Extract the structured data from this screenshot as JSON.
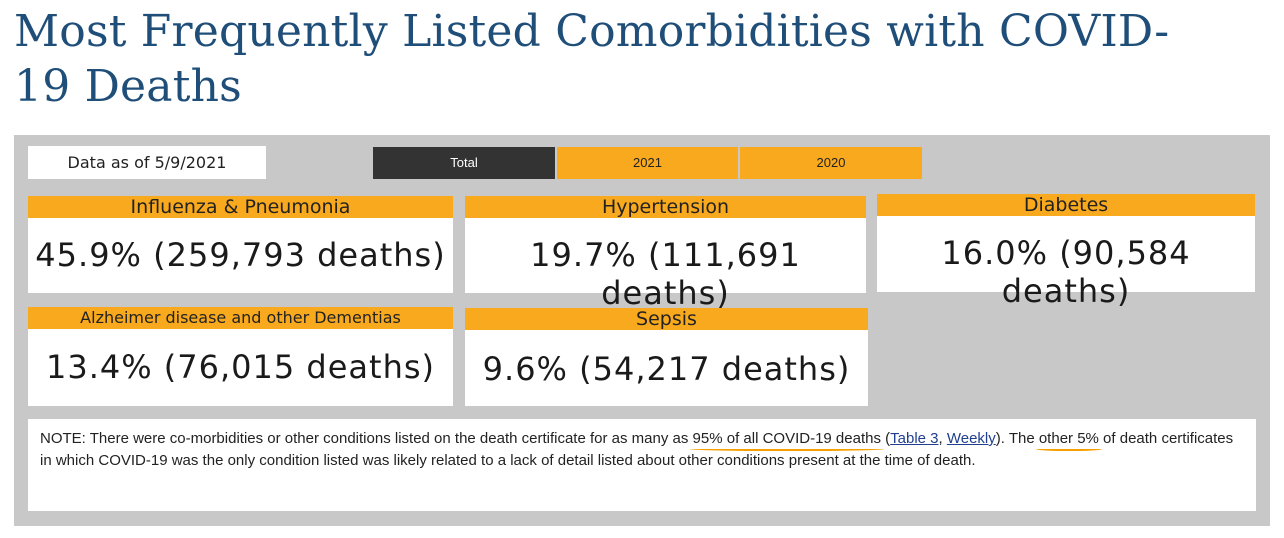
{
  "title": "Most Frequently Listed Comorbidities with COVID-19 Deaths",
  "data_as_of": "Data as of 5/9/2021",
  "tabs": [
    {
      "label": "Total",
      "active": true
    },
    {
      "label": "2021",
      "active": false
    },
    {
      "label": "2020",
      "active": false
    }
  ],
  "cards": [
    {
      "label": "Influenza & Pneumonia",
      "value": "45.9% (259,793 deaths)"
    },
    {
      "label": "Hypertension",
      "value": "19.7% (111,691 deaths)"
    },
    {
      "label": "Diabetes",
      "value": "16.0% (90,584 deaths)"
    },
    {
      "label": "Alzheimer disease and other Dementias",
      "value": "13.4% (76,015 deaths)"
    },
    {
      "label": "Sepsis",
      "value": "9.6% (54,217 deaths)"
    }
  ],
  "note": {
    "part1": "NOTE: There were co-morbidities or other conditions listed on the death certificate for as many as ",
    "highlight1": "95% of all COVID-19 deaths",
    "part2": " (",
    "link1": "Table 3",
    "part3": ", ",
    "link2": "Weekly",
    "part4": "). The ",
    "highlight2": "other 5%",
    "part5": " of death certificates in which COVID-19 was the only condition listed was likely related to a lack of detail listed about other conditions present at the time of death."
  },
  "colors": {
    "title": "#1f4e79",
    "accent": "#f9a91d",
    "active_tab": "#333333",
    "panel": "#c8c8c8"
  }
}
